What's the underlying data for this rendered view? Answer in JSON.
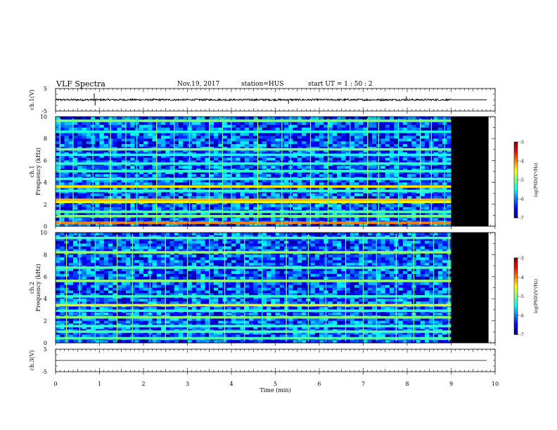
{
  "header": {
    "title": "VLF Spectra",
    "date": "Nov.19, 2017",
    "station": "station=HUS",
    "start_ut": "start  UT =   1 : 50 : 2"
  },
  "chart_data": [
    {
      "type": "line",
      "name": "ch1-waveform",
      "ylabel": "ch.1(V)",
      "ylim": [
        -5,
        5
      ],
      "yticks": [
        "5",
        "-5"
      ],
      "xlim": [
        0,
        10
      ],
      "signal_noise_amplitude_v": 0.4,
      "flat_after_min": 9.0,
      "spikes": [
        {
          "x": 0.88,
          "y": 2.8
        },
        {
          "x": 0.9,
          "y": -2.5
        },
        {
          "x": 5.3,
          "y": -1.8
        },
        {
          "x": 7.98,
          "y": 1.5
        }
      ]
    },
    {
      "type": "heatmap",
      "name": "ch1-spectrogram",
      "ylabel": "ch.1\nFrequency (kHz)",
      "ylim": [
        0,
        10
      ],
      "yticks": [
        "0",
        "2",
        "4",
        "6",
        "8",
        "10"
      ],
      "xlim": [
        0,
        10
      ],
      "data_end_min": 9.0,
      "colorbar": {
        "label": "log(PSD)(V²/Hz)",
        "range": [
          -7,
          -3
        ],
        "ticks": [
          "-3",
          "-4",
          "-5",
          "-6",
          "-7"
        ]
      },
      "constant_bands": [
        {
          "freq_khz": 0.3,
          "level": -4.0
        },
        {
          "freq_khz": 0.9,
          "level": -5.0
        },
        {
          "freq_khz": 1.3,
          "level": -5.2
        },
        {
          "freq_khz": 2.2,
          "level": -4.6
        },
        {
          "freq_khz": 2.4,
          "level": -4.2
        },
        {
          "freq_khz": 3.2,
          "level": -5.3
        },
        {
          "freq_khz": 3.6,
          "level": -4.4
        },
        {
          "freq_khz": 4.3,
          "level": -5.3
        },
        {
          "freq_khz": 5.0,
          "level": -5.3
        },
        {
          "freq_khz": 5.7,
          "level": -5.3
        },
        {
          "freq_khz": 6.5,
          "level": -5.4
        },
        {
          "freq_khz": 7.0,
          "level": -5.0
        },
        {
          "freq_khz": 8.6,
          "level": -5.4
        },
        {
          "freq_khz": 9.6,
          "level": -5.0
        }
      ],
      "impulse_times_min": [
        0.1,
        0.4,
        0.85,
        1.25,
        1.6,
        1.85,
        2.3,
        2.7,
        3.05,
        3.5,
        3.8,
        4.0,
        4.6,
        5.15,
        5.35,
        5.8,
        6.2,
        6.7,
        7.1,
        7.35,
        7.8,
        8.3,
        8.55,
        8.85
      ]
    },
    {
      "type": "heatmap",
      "name": "ch2-spectrogram",
      "ylabel": "ch.2\nFrequency (kHz)",
      "ylim": [
        0,
        10
      ],
      "yticks": [
        "0",
        "2",
        "4",
        "6",
        "8",
        "10"
      ],
      "xlim": [
        0,
        10
      ],
      "data_end_min": 9.0,
      "colorbar": {
        "label": "log(PSD)(V²/Hz)",
        "range": [
          -7,
          -3
        ],
        "ticks": [
          "-3",
          "-4",
          "-5",
          "-6",
          "-7"
        ]
      },
      "constant_bands": [
        {
          "freq_khz": 0.4,
          "level": -5.2
        },
        {
          "freq_khz": 1.0,
          "level": -5.2
        },
        {
          "freq_khz": 1.5,
          "level": -5.3
        },
        {
          "freq_khz": 2.3,
          "level": -5.0
        },
        {
          "freq_khz": 2.9,
          "level": -5.3
        },
        {
          "freq_khz": 3.4,
          "level": -4.6
        },
        {
          "freq_khz": 4.2,
          "level": -5.3
        },
        {
          "freq_khz": 5.6,
          "level": -4.9
        },
        {
          "freq_khz": 6.8,
          "level": -5.2
        },
        {
          "freq_khz": 8.2,
          "level": -4.9
        },
        {
          "freq_khz": 9.5,
          "level": -5.2
        }
      ],
      "impulse_times_min": [
        0.25,
        0.55,
        0.9,
        1.4,
        1.75,
        2.15,
        2.5,
        3.0,
        3.5,
        3.85,
        4.3,
        4.7,
        5.25,
        5.75,
        6.15,
        6.6,
        7.0,
        7.3,
        7.75,
        8.15,
        8.6,
        8.95
      ]
    },
    {
      "type": "line",
      "name": "ch3-waveform",
      "ylabel": "ch.3(V)",
      "ylim": [
        -5,
        5
      ],
      "yticks": [
        "5",
        "-5"
      ],
      "xlim": [
        0,
        10
      ],
      "value": 0
    }
  ],
  "xaxis": {
    "label": "Time (min)",
    "ticks": [
      "0",
      "1",
      "2",
      "3",
      "4",
      "5",
      "6",
      "7",
      "8",
      "9",
      "10"
    ]
  }
}
